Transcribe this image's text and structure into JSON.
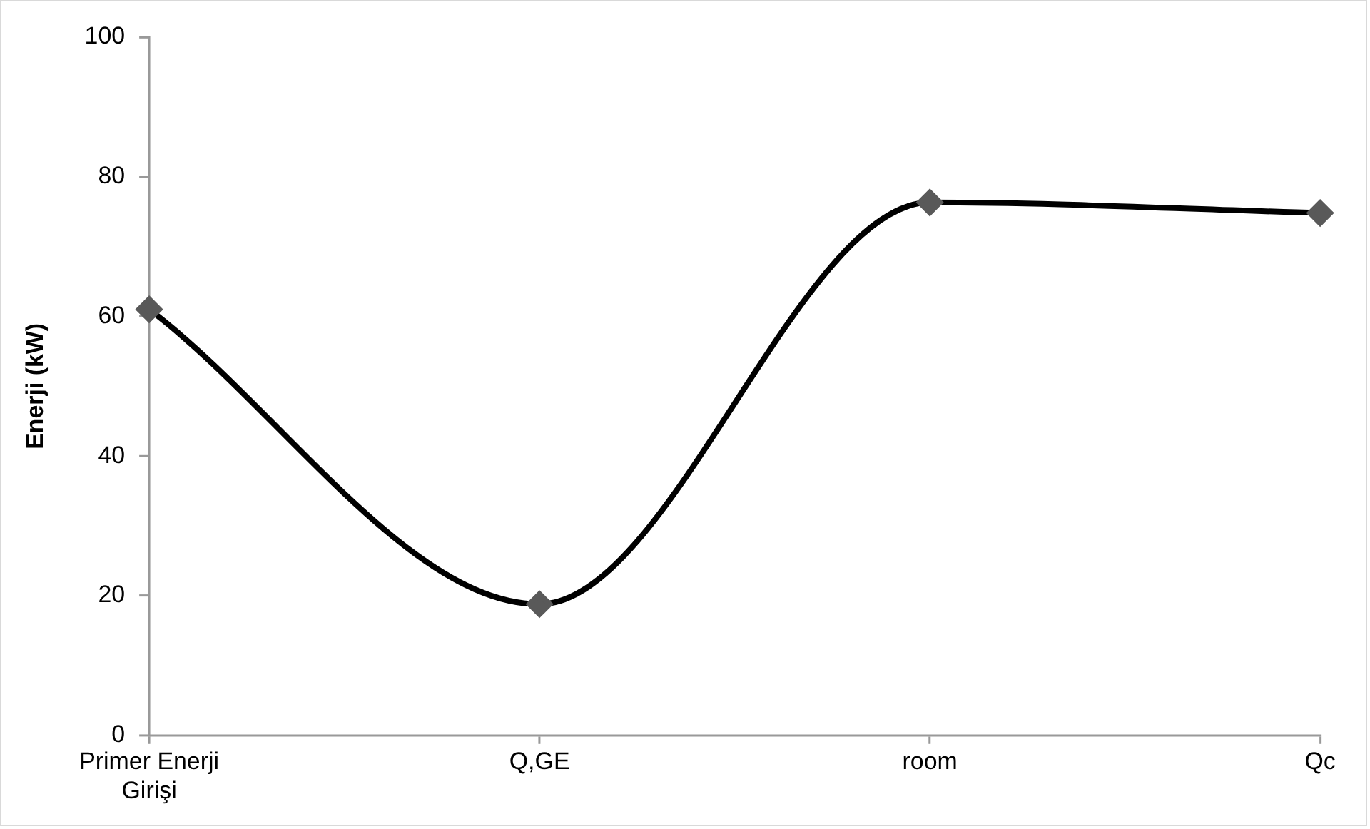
{
  "chart_data": {
    "type": "line",
    "ylabel": "Enerji (kW)",
    "categories": [
      "Primer Enerji Girişi",
      "Q,GE",
      "room",
      "Qc"
    ],
    "series": [
      {
        "color": "#000000",
        "values": [
          61,
          18.8,
          76.3,
          74.8
        ]
      }
    ],
    "ylim": [
      0,
      100
    ],
    "yticks": [
      0,
      20,
      40,
      60,
      80,
      100
    ],
    "grid": false,
    "legend": false,
    "marker": "diamond",
    "line_style": "solid"
  }
}
